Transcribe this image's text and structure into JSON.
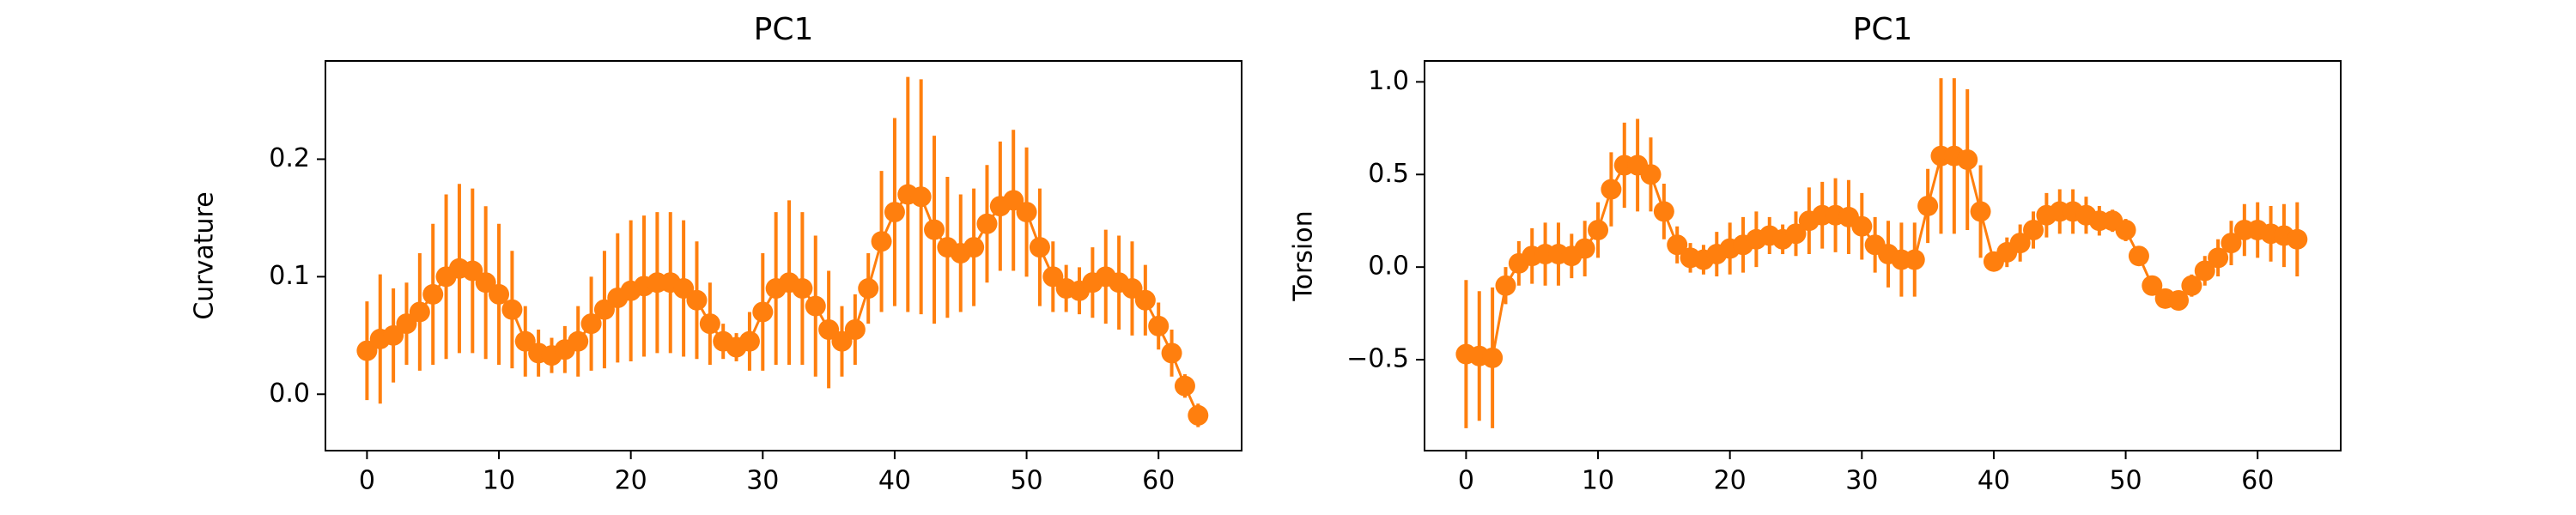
{
  "chart_data": [
    {
      "type": "errorbar",
      "title": "PC1",
      "ylabel": "Curvature",
      "color": "#ff7f0e",
      "x": [
        0,
        1,
        2,
        3,
        4,
        5,
        6,
        7,
        8,
        9,
        10,
        11,
        12,
        13,
        14,
        15,
        16,
        17,
        18,
        19,
        20,
        21,
        22,
        23,
        24,
        25,
        26,
        27,
        28,
        29,
        30,
        31,
        32,
        33,
        34,
        35,
        36,
        37,
        38,
        39,
        40,
        41,
        42,
        43,
        44,
        45,
        46,
        47,
        48,
        49,
        50,
        51,
        52,
        53,
        54,
        55,
        56,
        57,
        58,
        59,
        60,
        61,
        62,
        63
      ],
      "values": [
        0.037,
        0.047,
        0.05,
        0.06,
        0.07,
        0.085,
        0.1,
        0.107,
        0.105,
        0.095,
        0.085,
        0.072,
        0.045,
        0.035,
        0.033,
        0.038,
        0.045,
        0.06,
        0.072,
        0.082,
        0.088,
        0.092,
        0.095,
        0.095,
        0.09,
        0.08,
        0.06,
        0.045,
        0.04,
        0.045,
        0.07,
        0.09,
        0.095,
        0.09,
        0.075,
        0.055,
        0.045,
        0.055,
        0.09,
        0.13,
        0.155,
        0.17,
        0.168,
        0.14,
        0.125,
        0.12,
        0.125,
        0.145,
        0.16,
        0.165,
        0.155,
        0.125,
        0.1,
        0.09,
        0.088,
        0.095,
        0.1,
        0.095,
        0.09,
        0.08,
        0.058,
        0.035,
        0.007,
        -0.018
      ],
      "errors": [
        0.042,
        0.055,
        0.04,
        0.035,
        0.05,
        0.06,
        0.07,
        0.072,
        0.07,
        0.065,
        0.06,
        0.05,
        0.03,
        0.02,
        0.015,
        0.02,
        0.03,
        0.04,
        0.05,
        0.055,
        0.06,
        0.06,
        0.06,
        0.06,
        0.058,
        0.05,
        0.035,
        0.015,
        0.012,
        0.025,
        0.05,
        0.065,
        0.07,
        0.065,
        0.06,
        0.05,
        0.03,
        0.03,
        0.03,
        0.06,
        0.08,
        0.1,
        0.1,
        0.08,
        0.06,
        0.05,
        0.05,
        0.05,
        0.055,
        0.06,
        0.055,
        0.05,
        0.03,
        0.02,
        0.02,
        0.03,
        0.04,
        0.04,
        0.04,
        0.03,
        0.02,
        0.02,
        0.01,
        0.01
      ],
      "xlim": [
        -3.15,
        66.3
      ],
      "ylim": [
        -0.048,
        0.2836
      ],
      "xticks": [
        0,
        10,
        20,
        30,
        40,
        50,
        60
      ],
      "yticks": [
        {
          "value": 0,
          "label": "0.0"
        },
        0.1,
        0.2
      ]
    },
    {
      "type": "errorbar",
      "title": "PC1",
      "ylabel": "Torsion",
      "color": "#ff7f0e",
      "x": [
        0,
        1,
        2,
        3,
        4,
        5,
        6,
        7,
        8,
        9,
        10,
        11,
        12,
        13,
        14,
        15,
        16,
        17,
        18,
        19,
        20,
        21,
        22,
        23,
        24,
        25,
        26,
        27,
        28,
        29,
        30,
        31,
        32,
        33,
        34,
        35,
        36,
        37,
        38,
        39,
        40,
        41,
        42,
        43,
        44,
        45,
        46,
        47,
        48,
        49,
        50,
        51,
        52,
        53,
        54,
        55,
        56,
        57,
        58,
        59,
        60,
        61,
        62,
        63
      ],
      "values": [
        -0.47,
        -0.48,
        -0.49,
        -0.1,
        0.02,
        0.06,
        0.07,
        0.07,
        0.06,
        0.1,
        0.2,
        0.42,
        0.55,
        0.55,
        0.5,
        0.3,
        0.12,
        0.05,
        0.04,
        0.07,
        0.1,
        0.12,
        0.15,
        0.17,
        0.15,
        0.18,
        0.25,
        0.28,
        0.28,
        0.27,
        0.22,
        0.12,
        0.07,
        0.04,
        0.04,
        0.33,
        0.6,
        0.6,
        0.58,
        0.3,
        0.03,
        0.08,
        0.13,
        0.2,
        0.28,
        0.3,
        0.3,
        0.28,
        0.25,
        0.25,
        0.2,
        0.06,
        -0.1,
        -0.17,
        -0.18,
        -0.1,
        -0.02,
        0.05,
        0.13,
        0.2,
        0.2,
        0.18,
        0.17,
        0.15
      ],
      "errors": [
        0.4,
        0.35,
        0.38,
        0.1,
        0.12,
        0.15,
        0.17,
        0.17,
        0.12,
        0.15,
        0.15,
        0.2,
        0.23,
        0.25,
        0.2,
        0.15,
        0.1,
        0.08,
        0.08,
        0.12,
        0.14,
        0.15,
        0.15,
        0.1,
        0.08,
        0.12,
        0.18,
        0.18,
        0.2,
        0.2,
        0.18,
        0.15,
        0.18,
        0.2,
        0.2,
        0.2,
        0.42,
        0.42,
        0.38,
        0.25,
        0.05,
        0.08,
        0.1,
        0.1,
        0.12,
        0.12,
        0.12,
        0.1,
        0.08,
        0.06,
        0.06,
        0.05,
        0.05,
        0.04,
        0.05,
        0.06,
        0.08,
        0.1,
        0.12,
        0.14,
        0.15,
        0.15,
        0.17,
        0.2
      ],
      "xlim": [
        -3.15,
        66.3
      ],
      "ylim": [
        -0.991,
        1.113
      ],
      "xticks": [
        0,
        10,
        20,
        30,
        40,
        50,
        60
      ],
      "yticks": [
        {
          "value": -0.5,
          "label": "−0.5"
        },
        {
          "value": 0,
          "label": "0.0"
        },
        0.5,
        {
          "value": 1,
          "label": "1.0"
        }
      ]
    }
  ]
}
